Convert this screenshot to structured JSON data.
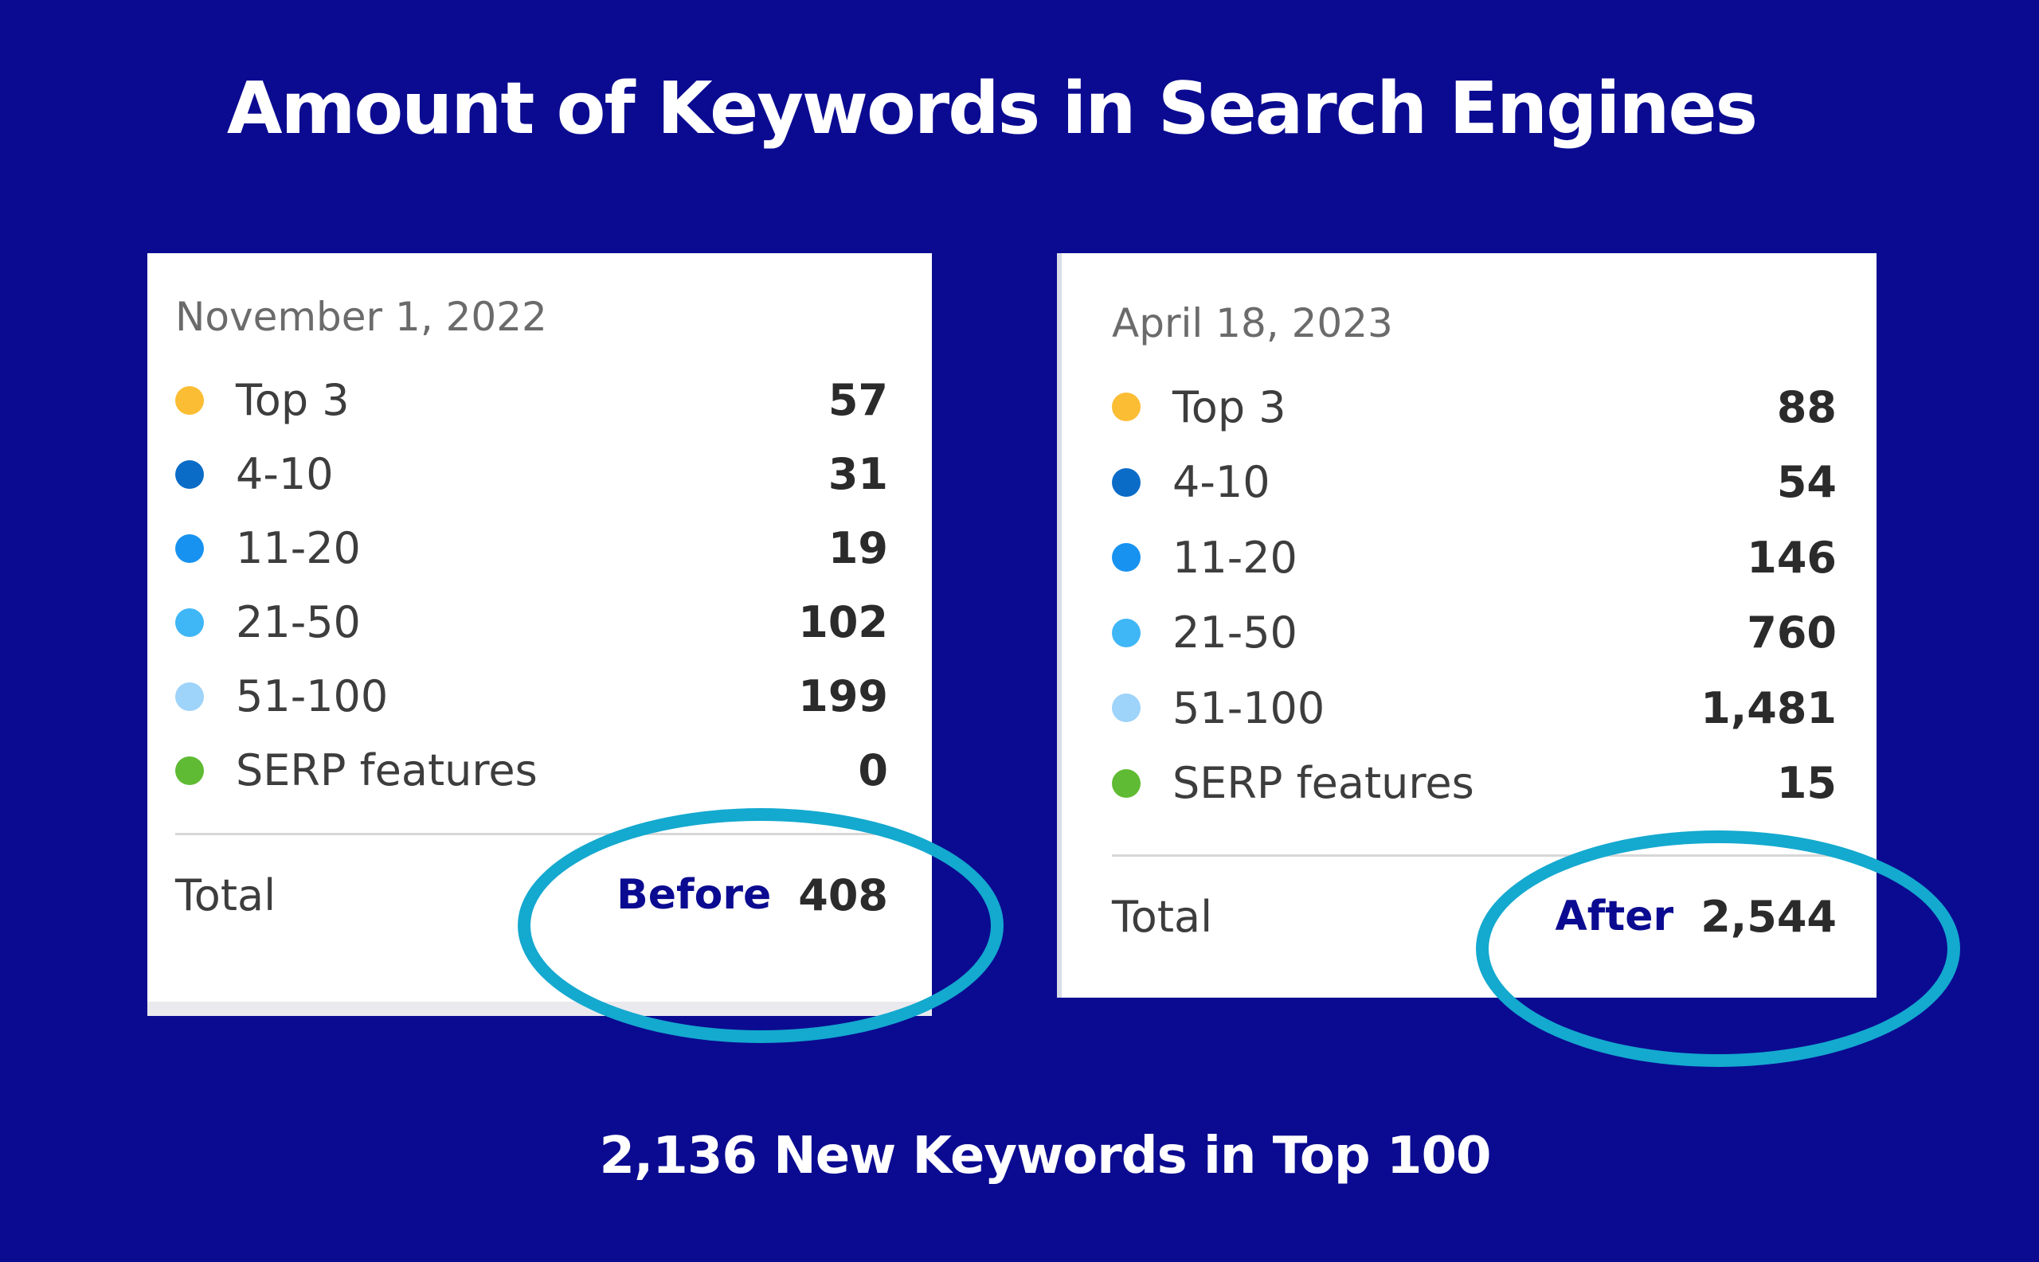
{
  "title": "Amount of Keywords in Search Engines",
  "subtitle": "2,136 New Keywords in Top 100",
  "colors": {
    "background": "#0b0b91",
    "highlight": "#14a9cf",
    "dot_top3": "#fbbd34",
    "dot_4_10": "#0b6cc8",
    "dot_11_20": "#1792f0",
    "dot_21_50": "#3fb6f6",
    "dot_51_100": "#9ed3fa",
    "dot_serp": "#5fbb33"
  },
  "before": {
    "date": "November 1, 2022",
    "rows": [
      {
        "label": "Top 3",
        "value": "57"
      },
      {
        "label": "4-10",
        "value": "31"
      },
      {
        "label": "11-20",
        "value": "19"
      },
      {
        "label": "21-50",
        "value": "102"
      },
      {
        "label": "51-100",
        "value": "199"
      },
      {
        "label": "SERP features",
        "value": "0"
      }
    ],
    "total_label": "Total",
    "tag": "Before",
    "total_value": "408"
  },
  "after": {
    "date": "April 18, 2023",
    "rows": [
      {
        "label": "Top 3",
        "value": "88"
      },
      {
        "label": "4-10",
        "value": "54"
      },
      {
        "label": "11-20",
        "value": "146"
      },
      {
        "label": "21-50",
        "value": "760"
      },
      {
        "label": "51-100",
        "value": "1,481"
      },
      {
        "label": "SERP features",
        "value": "15"
      }
    ],
    "total_label": "Total",
    "tag": "After",
    "total_value": "2,544"
  }
}
